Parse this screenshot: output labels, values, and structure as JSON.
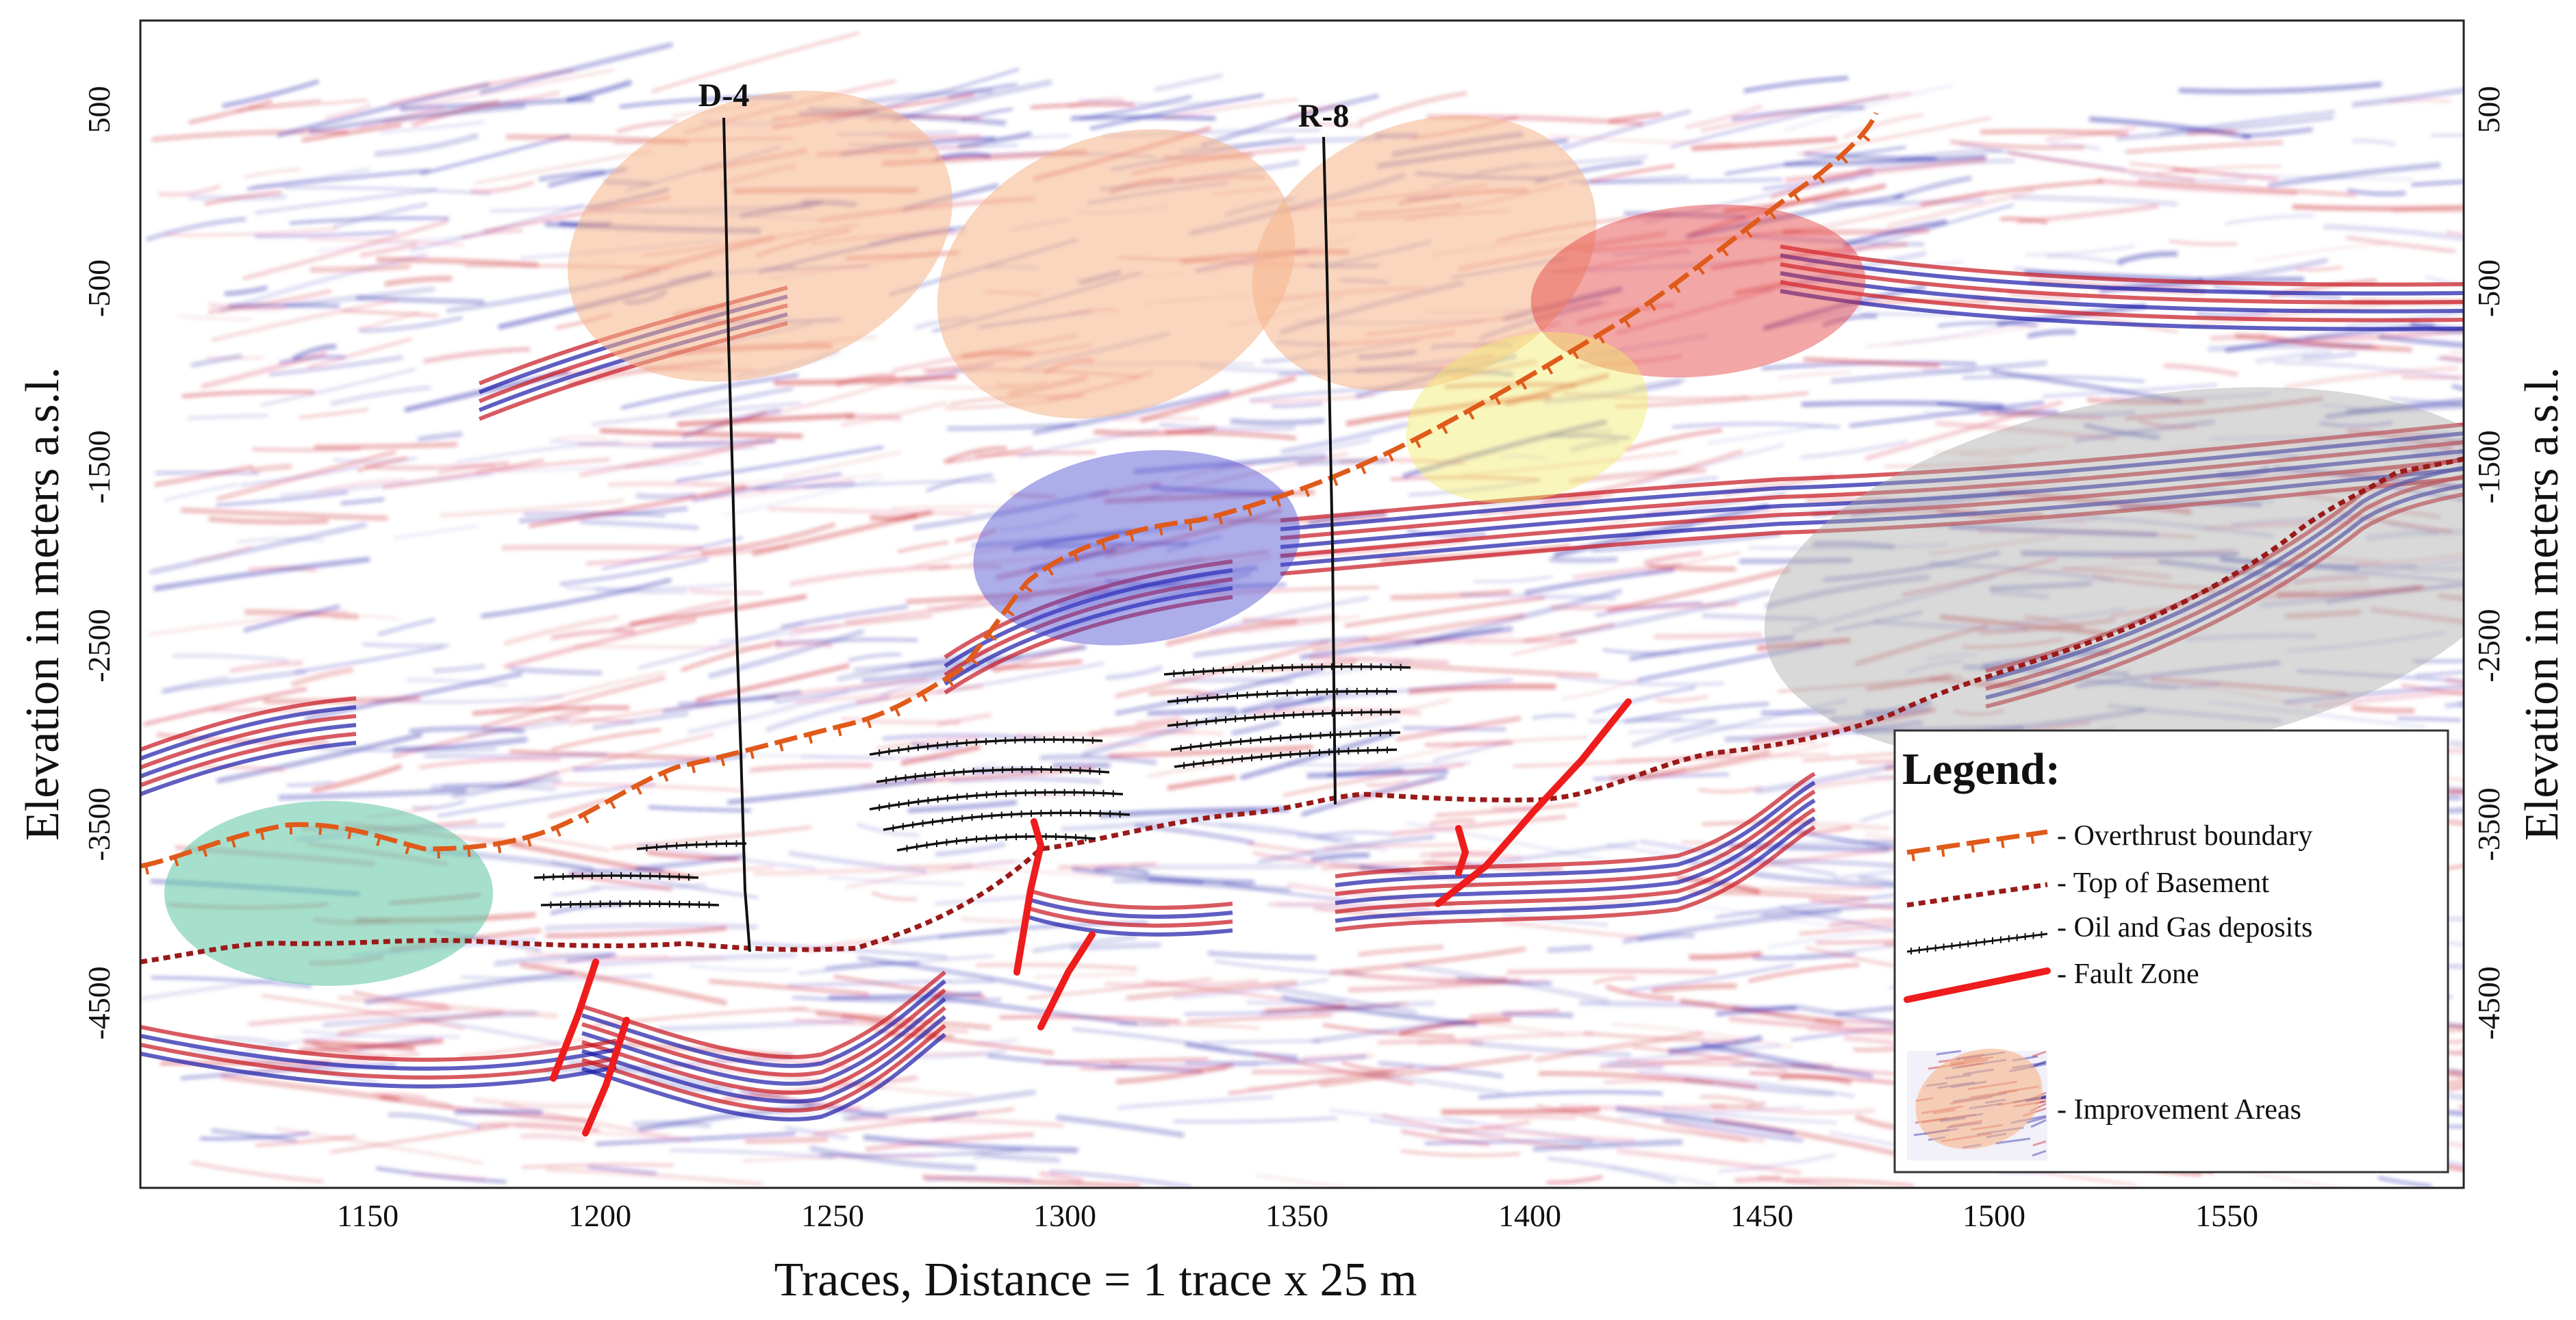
{
  "figure": {
    "x_axis": {
      "title": "Traces, Distance = 1 trace x 25 m",
      "ticks": [
        1150,
        1200,
        1250,
        1300,
        1350,
        1400,
        1450,
        1500,
        1550
      ],
      "range": [
        1100,
        1600
      ]
    },
    "y_axis": {
      "title": "Elevation in meters a.s.l.",
      "ticks": [
        500,
        -500,
        -1500,
        -2500,
        -3500,
        -4500
      ],
      "range": [
        1300,
        -5200
      ]
    },
    "wells": [
      {
        "label": "D-4",
        "trace": 1225
      },
      {
        "label": "R-8",
        "trace": 1355
      }
    ],
    "legend": {
      "title": "Legend:",
      "items": [
        {
          "label": "- Overthrust boundary",
          "symbol": "overthrust",
          "color": "#e05a1a"
        },
        {
          "label": "- Top of Basement",
          "symbol": "basement",
          "color": "#9a1a1a"
        },
        {
          "label": "- Oil and Gas deposits",
          "symbol": "deposits",
          "color": "#111111"
        },
        {
          "label": "- Fault Zone",
          "symbol": "fault",
          "color": "#ee1c1c"
        },
        {
          "label": "- Improvement Areas",
          "symbol": "improvement",
          "color": "#f6b58a"
        }
      ]
    },
    "improvement_area_colors": [
      "#f6b58a",
      "#f6b58a",
      "#f6b58a",
      "#e23a3a",
      "#f2ea6a",
      "#4a4ad0",
      "#aaaaaa",
      "#5ec4a4"
    ],
    "seismic_colors": {
      "positive": "#c8141e",
      "negative": "#1a1aa8",
      "background": "#ffffff"
    }
  }
}
